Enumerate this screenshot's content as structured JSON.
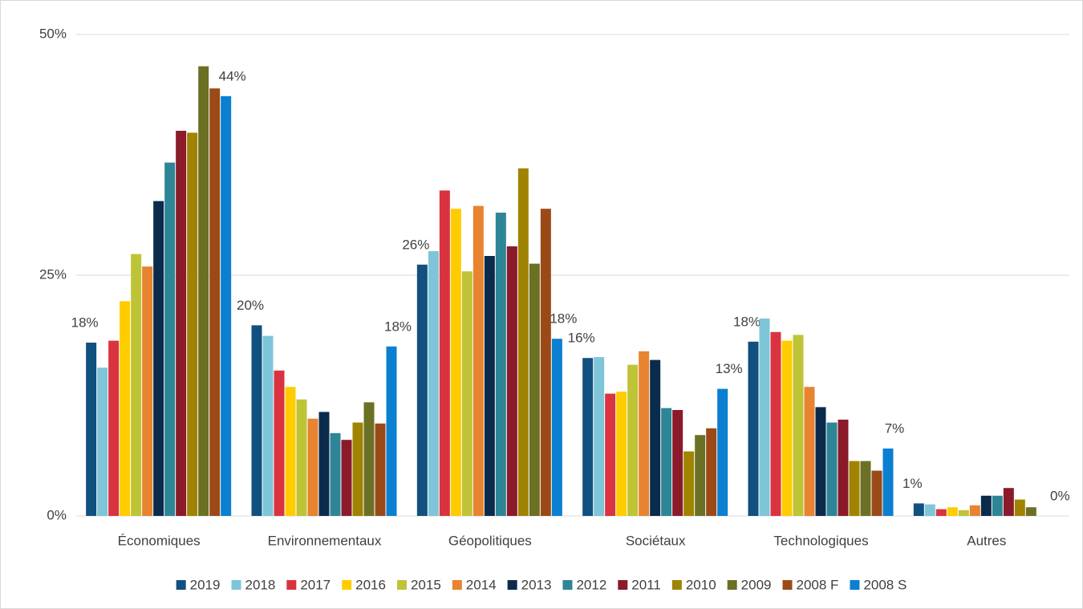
{
  "chart_data": {
    "type": "bar",
    "categories": [
      "Économiques",
      "Environnementaux",
      "Géopolitiques",
      "Sociétaux",
      "Technologiques",
      "Autres"
    ],
    "series": [
      {
        "name": "2019",
        "color": "#12507f",
        "values": [
          18.0,
          19.8,
          26.1,
          16.4,
          18.1,
          1.3
        ],
        "value_labels": [
          "18%",
          "20%",
          "26%",
          "16%",
          "18%",
          "1%"
        ]
      },
      {
        "name": "2018",
        "color": "#7ec5d8",
        "values": [
          15.4,
          18.7,
          27.5,
          16.5,
          20.5,
          1.2
        ]
      },
      {
        "name": "2017",
        "color": "#d9333f",
        "values": [
          18.2,
          15.1,
          33.8,
          12.7,
          19.1,
          0.7
        ]
      },
      {
        "name": "2016",
        "color": "#ffcc00",
        "values": [
          22.3,
          13.4,
          31.9,
          12.9,
          18.2,
          0.9
        ]
      },
      {
        "name": "2015",
        "color": "#bfc437",
        "values": [
          27.2,
          12.1,
          25.4,
          15.7,
          18.8,
          0.6
        ]
      },
      {
        "name": "2014",
        "color": "#e8832f",
        "values": [
          25.9,
          10.1,
          32.2,
          17.1,
          13.4,
          1.1
        ]
      },
      {
        "name": "2013",
        "color": "#0b2b4c",
        "values": [
          32.7,
          10.8,
          27.0,
          16.2,
          11.3,
          2.1
        ]
      },
      {
        "name": "2012",
        "color": "#2e8596",
        "values": [
          36.7,
          8.6,
          31.5,
          11.2,
          9.7,
          2.1
        ]
      },
      {
        "name": "2011",
        "color": "#8b1a2a",
        "values": [
          40.0,
          7.9,
          28.0,
          11.0,
          10.0,
          2.9
        ]
      },
      {
        "name": "2010",
        "color": "#a08300",
        "values": [
          39.8,
          9.7,
          36.1,
          6.7,
          5.7,
          1.7
        ]
      },
      {
        "name": "2009",
        "color": "#6b7024",
        "values": [
          46.7,
          11.8,
          26.2,
          8.4,
          5.7,
          0.9
        ]
      },
      {
        "name": "2008 F",
        "color": "#9b4a17",
        "values": [
          44.4,
          9.6,
          31.9,
          9.1,
          4.7,
          0
        ]
      },
      {
        "name": "2008 S",
        "color": "#0b7fd0",
        "values": [
          43.6,
          17.6,
          18.4,
          13.2,
          7.0,
          0
        ],
        "value_labels": [
          "44%",
          "18%",
          "18%",
          "13%",
          "7%",
          "0%"
        ]
      }
    ],
    "ylim": [
      0,
      50
    ],
    "yticks": [
      {
        "value": 0,
        "label": "0%"
      },
      {
        "value": 25,
        "label": "25%"
      },
      {
        "value": 50,
        "label": "50%"
      }
    ],
    "grid": true
  }
}
